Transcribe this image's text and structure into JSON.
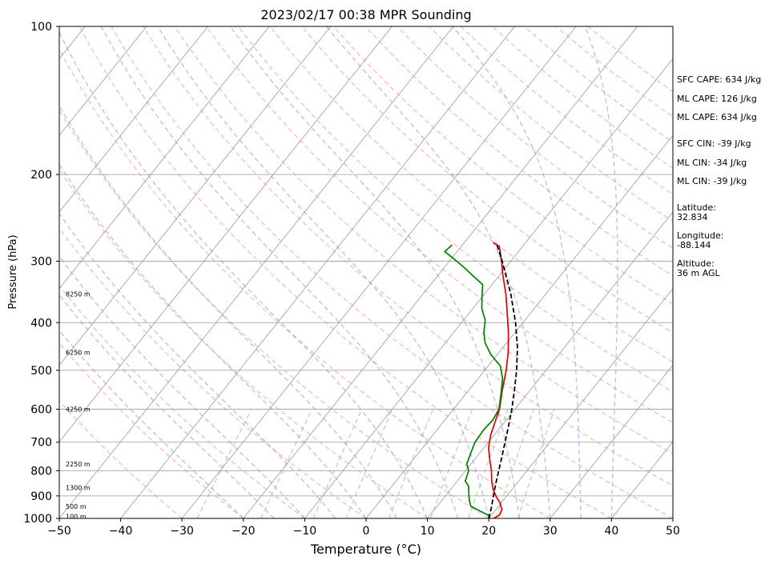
{
  "chart_data": {
    "type": "line",
    "title": "2023/02/17 00:38 MPR Sounding",
    "xlabel": "Temperature (°C)",
    "ylabel": "Pressure (hPa)",
    "xlim": [
      -50,
      50
    ],
    "ylim": [
      1000,
      100
    ],
    "y_scale": "log",
    "x_ticks": [
      "−50",
      "−40",
      "−30",
      "−20",
      "−10",
      "0",
      "10",
      "20",
      "30",
      "40",
      "50"
    ],
    "y_ticks": [
      "100",
      "200",
      "300",
      "400",
      "500",
      "600",
      "700",
      "800",
      "900",
      "1000"
    ],
    "height_labels": [
      {
        "text": "100 m",
        "p": 990
      },
      {
        "text": "500 m",
        "p": 945
      },
      {
        "text": "1300 m",
        "p": 865
      },
      {
        "text": "2250 m",
        "p": 775
      },
      {
        "text": "4250 m",
        "p": 600
      },
      {
        "text": "6250 m",
        "p": 460
      },
      {
        "text": "8250 m",
        "p": 350
      }
    ],
    "series": [
      {
        "color": "#e00000",
        "points": [
          [
            1000,
            20.8
          ],
          [
            985,
            21.3
          ],
          [
            960,
            21.0
          ],
          [
            930,
            19.8
          ],
          [
            900,
            18.2
          ],
          [
            870,
            16.8
          ],
          [
            840,
            15.6
          ],
          [
            800,
            14.2
          ],
          [
            760,
            12.5
          ],
          [
            720,
            10.8
          ],
          [
            680,
            9.5
          ],
          [
            640,
            8.5
          ],
          [
            600,
            7.5
          ],
          [
            550,
            5.5
          ],
          [
            500,
            3.5
          ],
          [
            460,
            1.5
          ],
          [
            420,
            -1.0
          ],
          [
            380,
            -4.0
          ],
          [
            350,
            -6.5
          ],
          [
            320,
            -9.5
          ],
          [
            300,
            -11.5
          ],
          [
            280,
            -13.8
          ],
          [
            275,
            -15.3
          ]
        ]
      },
      {
        "color": "#008000",
        "points": [
          [
            1000,
            20.2
          ],
          [
            985,
            19.5
          ],
          [
            965,
            17.5
          ],
          [
            945,
            15.5
          ],
          [
            920,
            14.5
          ],
          [
            890,
            13.5
          ],
          [
            860,
            12.5
          ],
          [
            840,
            11.3
          ],
          [
            800,
            10.5
          ],
          [
            775,
            9.3
          ],
          [
            740,
            8.6
          ],
          [
            700,
            7.8
          ],
          [
            660,
            7.6
          ],
          [
            630,
            7.8
          ],
          [
            600,
            7.4
          ],
          [
            560,
            5.8
          ],
          [
            520,
            4.0
          ],
          [
            490,
            2.0
          ],
          [
            465,
            -1.0
          ],
          [
            440,
            -3.5
          ],
          [
            420,
            -5.0
          ],
          [
            395,
            -6.5
          ],
          [
            375,
            -8.5
          ],
          [
            355,
            -10.0
          ],
          [
            335,
            -11.5
          ],
          [
            320,
            -14.5
          ],
          [
            308,
            -17.0
          ],
          [
            295,
            -20.0
          ],
          [
            287,
            -22.0
          ],
          [
            278,
            -21.7
          ]
        ]
      },
      {
        "color": "#000000",
        "dashed": true,
        "points": [
          [
            1000,
            20.0
          ],
          [
            950,
            19.0
          ],
          [
            900,
            17.8
          ],
          [
            850,
            16.6
          ],
          [
            800,
            15.4
          ],
          [
            750,
            14.1
          ],
          [
            700,
            12.7
          ],
          [
            650,
            11.2
          ],
          [
            600,
            9.5
          ],
          [
            550,
            7.5
          ],
          [
            500,
            5.2
          ],
          [
            450,
            2.4
          ],
          [
            400,
            -1.2
          ],
          [
            350,
            -5.7
          ],
          [
            300,
            -11.4
          ],
          [
            275,
            -14.8
          ]
        ]
      }
    ],
    "background": {
      "isotherm_color": "#999999",
      "dry_adiabat_color": "#ff8080",
      "moist_adiabat_color": "#8080ff",
      "mixing_ratio_color": "#80c080",
      "grid_color": "#999999"
    }
  },
  "info": {
    "sfc_cape": "SFC CAPE: 634 J/kg",
    "ml_cape_1": "ML CAPE: 126 J/kg",
    "ml_cape_2": "ML CAPE: 634 J/kg",
    "sfc_cin": "SFC CIN: -39 J/kg",
    "ml_cin_1": "ML CIN: -34 J/kg",
    "ml_cin_2": "ML CIN: -39 J/kg",
    "latitude": "Latitude:\n32.834",
    "longitude": "Longitude:\n-88.144",
    "altitude": "Altitude:\n36 m AGL"
  }
}
